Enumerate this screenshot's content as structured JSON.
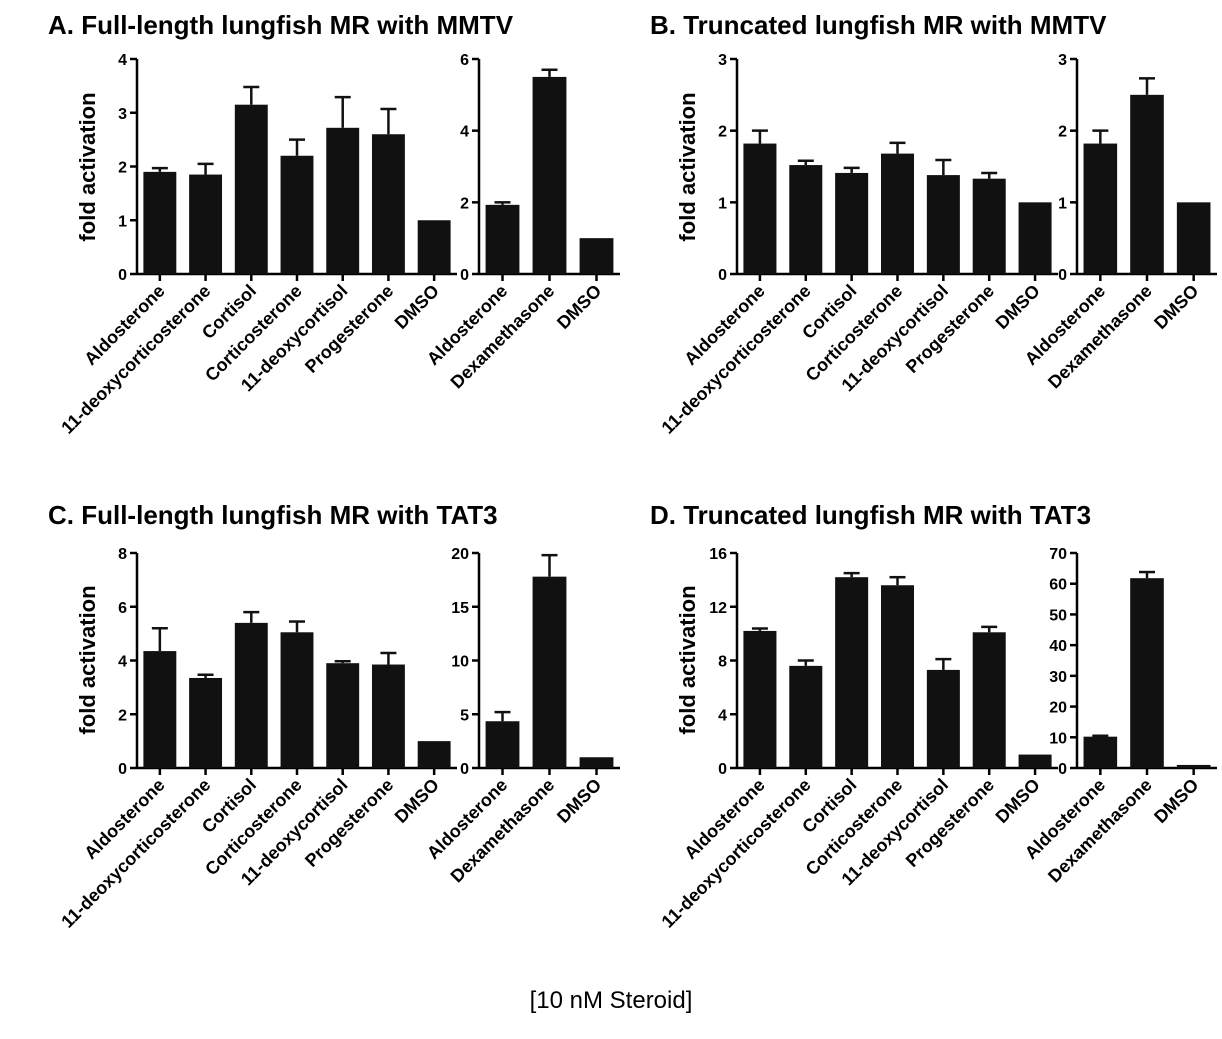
{
  "figure": {
    "footer": "[10 nM Steroid]"
  },
  "chart_data": [
    {
      "panel": "A",
      "title": "A. Full-length lungfish MR with MMTV",
      "type": "bar",
      "ylabel": "fold activation",
      "subplots": [
        {
          "categories": [
            "Aldosterone",
            "11-deoxycorticosterone",
            "Cortisol",
            "Corticosterone",
            "11-deoxycortisol",
            "Progesterone",
            "DMSO"
          ],
          "values": [
            1.9,
            1.85,
            3.15,
            2.2,
            2.72,
            2.6,
            1.0
          ],
          "errors": [
            0.07,
            0.2,
            0.33,
            0.3,
            0.57,
            0.47,
            0
          ],
          "ylim": [
            0,
            4
          ],
          "yticks": [
            "0",
            "1",
            "2",
            "3",
            "4"
          ]
        },
        {
          "categories": [
            "Aldosterone",
            "Dexamethasone",
            "DMSO"
          ],
          "values": [
            1.93,
            5.5,
            1.0
          ],
          "errors": [
            0.07,
            0.2,
            0
          ],
          "ylim": [
            0,
            6
          ],
          "yticks": [
            "0",
            "2",
            "4",
            "6"
          ]
        }
      ]
    },
    {
      "panel": "B",
      "title": "B. Truncated lungfish MR with MMTV",
      "type": "bar",
      "ylabel": "fold activation",
      "subplots": [
        {
          "categories": [
            "Aldosterone",
            "11-deoxycorticosterone",
            "Cortisol",
            "Corticosterone",
            "11-deoxycortisol",
            "Progesterone",
            "DMSO"
          ],
          "values": [
            1.82,
            1.52,
            1.41,
            1.68,
            1.38,
            1.33,
            1.0
          ],
          "errors": [
            0.18,
            0.06,
            0.07,
            0.15,
            0.21,
            0.08,
            0
          ],
          "ylim": [
            0,
            3
          ],
          "yticks": [
            "0",
            "1",
            "2",
            "3"
          ]
        },
        {
          "categories": [
            "Aldosterone",
            "Dexamethasone",
            "DMSO"
          ],
          "values": [
            1.82,
            2.5,
            1.0
          ],
          "errors": [
            0.18,
            0.23,
            0
          ],
          "ylim": [
            0,
            3
          ],
          "yticks": [
            "0",
            "1",
            "2",
            "3"
          ]
        }
      ]
    },
    {
      "panel": "C",
      "title": "C. Full-length lungfish MR with TAT3",
      "type": "bar",
      "ylabel": "fold activation",
      "subplots": [
        {
          "categories": [
            "Aldosterone",
            "11-deoxycorticosterone",
            "Cortisol",
            "Corticosterone",
            "11-deoxycortisol",
            "Progesterone",
            "DMSO"
          ],
          "values": [
            4.35,
            3.35,
            5.4,
            5.05,
            3.9,
            3.85,
            1.0
          ],
          "errors": [
            0.85,
            0.12,
            0.4,
            0.4,
            0.07,
            0.43,
            0
          ],
          "ylim": [
            0,
            8
          ],
          "yticks": [
            "0",
            "2",
            "4",
            "6",
            "8"
          ]
        },
        {
          "categories": [
            "Aldosterone",
            "Dexamethasone",
            "DMSO"
          ],
          "values": [
            4.35,
            17.8,
            1.0
          ],
          "errors": [
            0.85,
            2.0,
            0
          ],
          "ylim": [
            0,
            20
          ],
          "yticks": [
            "0",
            "5",
            "10",
            "15",
            "20"
          ]
        }
      ]
    },
    {
      "panel": "D",
      "title": "D. Truncated lungfish MR with TAT3",
      "type": "bar",
      "ylabel": "fold activation",
      "subplots": [
        {
          "categories": [
            "Aldosterone",
            "11-deoxycorticosterone",
            "Cortisol",
            "Corticosterone",
            "11-deoxycortisol",
            "Progesterone",
            "DMSO"
          ],
          "values": [
            10.2,
            7.6,
            14.2,
            13.6,
            7.3,
            10.1,
            1.0
          ],
          "errors": [
            0.18,
            0.4,
            0.3,
            0.6,
            0.8,
            0.4,
            0
          ],
          "ylim": [
            0,
            16
          ],
          "yticks": [
            "0",
            "4",
            "8",
            "12",
            "16"
          ]
        },
        {
          "categories": [
            "Aldosterone",
            "Dexamethasone",
            "DMSO"
          ],
          "values": [
            10.2,
            61.8,
            1.0
          ],
          "errors": [
            0.3,
            2.0,
            0
          ],
          "ylim": [
            0,
            70
          ],
          "yticks": [
            "0",
            "10",
            "20",
            "30",
            "40",
            "50",
            "60",
            "70"
          ]
        }
      ]
    }
  ]
}
